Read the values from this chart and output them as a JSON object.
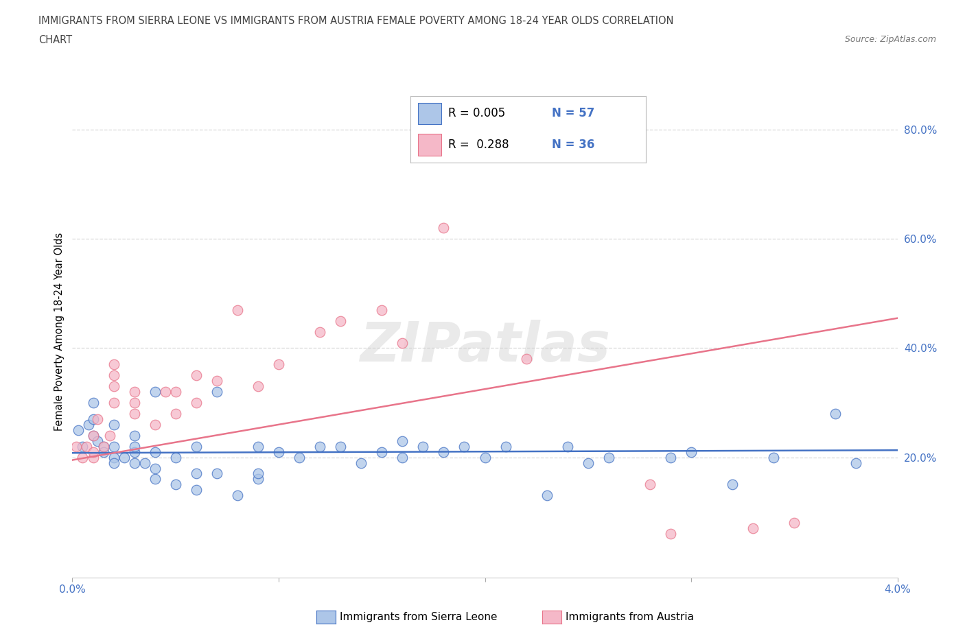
{
  "title_line1": "IMMIGRANTS FROM SIERRA LEONE VS IMMIGRANTS FROM AUSTRIA FEMALE POVERTY AMONG 18-24 YEAR OLDS CORRELATION",
  "title_line2": "CHART",
  "source": "Source: ZipAtlas.com",
  "ylabel": "Female Poverty Among 18-24 Year Olds",
  "xlim": [
    0.0,
    0.04
  ],
  "ylim": [
    -0.02,
    0.88
  ],
  "right_yticks": [
    0.2,
    0.4,
    0.6,
    0.8
  ],
  "right_ytick_labels": [
    "20.0%",
    "40.0%",
    "60.0%",
    "80.0%"
  ],
  "xticks": [
    0.0,
    0.01,
    0.02,
    0.03,
    0.04
  ],
  "xtick_labels": [
    "0.0%",
    "",
    "",
    "",
    "4.0%"
  ],
  "watermark": "ZIPatlas",
  "color_sierra": "#adc6e8",
  "color_austria": "#f5b8c8",
  "color_sierra_line": "#4472c4",
  "color_austria_line": "#e8748a",
  "color_blue_text": "#4472c4",
  "gridline_color": "#d8d8d8",
  "background_color": "#ffffff",
  "sierra_leone_x": [
    0.0003,
    0.0005,
    0.0008,
    0.001,
    0.001,
    0.001,
    0.0012,
    0.0015,
    0.0015,
    0.002,
    0.002,
    0.002,
    0.002,
    0.0025,
    0.003,
    0.003,
    0.003,
    0.003,
    0.0035,
    0.004,
    0.004,
    0.004,
    0.004,
    0.005,
    0.005,
    0.006,
    0.006,
    0.006,
    0.007,
    0.007,
    0.008,
    0.009,
    0.009,
    0.009,
    0.01,
    0.011,
    0.012,
    0.013,
    0.014,
    0.015,
    0.016,
    0.016,
    0.017,
    0.018,
    0.019,
    0.02,
    0.021,
    0.023,
    0.024,
    0.025,
    0.026,
    0.029,
    0.03,
    0.032,
    0.034,
    0.037,
    0.038
  ],
  "sierra_leone_y": [
    0.25,
    0.22,
    0.26,
    0.27,
    0.24,
    0.3,
    0.23,
    0.22,
    0.21,
    0.2,
    0.22,
    0.19,
    0.26,
    0.2,
    0.19,
    0.21,
    0.22,
    0.24,
    0.19,
    0.16,
    0.18,
    0.21,
    0.32,
    0.15,
    0.2,
    0.14,
    0.17,
    0.22,
    0.17,
    0.32,
    0.13,
    0.16,
    0.17,
    0.22,
    0.21,
    0.2,
    0.22,
    0.22,
    0.19,
    0.21,
    0.23,
    0.2,
    0.22,
    0.21,
    0.22,
    0.2,
    0.22,
    0.13,
    0.22,
    0.19,
    0.2,
    0.2,
    0.21,
    0.15,
    0.2,
    0.28,
    0.19
  ],
  "austria_x": [
    0.0002,
    0.0005,
    0.0007,
    0.001,
    0.001,
    0.001,
    0.0012,
    0.0015,
    0.0018,
    0.002,
    0.002,
    0.002,
    0.002,
    0.003,
    0.003,
    0.003,
    0.004,
    0.0045,
    0.005,
    0.005,
    0.006,
    0.006,
    0.007,
    0.008,
    0.009,
    0.01,
    0.012,
    0.013,
    0.015,
    0.016,
    0.018,
    0.022,
    0.028,
    0.029,
    0.033,
    0.035
  ],
  "austria_y": [
    0.22,
    0.2,
    0.22,
    0.2,
    0.21,
    0.24,
    0.27,
    0.22,
    0.24,
    0.3,
    0.35,
    0.33,
    0.37,
    0.28,
    0.3,
    0.32,
    0.26,
    0.32,
    0.28,
    0.32,
    0.35,
    0.3,
    0.34,
    0.47,
    0.33,
    0.37,
    0.43,
    0.45,
    0.47,
    0.41,
    0.62,
    0.38,
    0.15,
    0.06,
    0.07,
    0.08
  ],
  "sierra_trendline_x": [
    0.0,
    0.04
  ],
  "sierra_trendline_y": [
    0.208,
    0.213
  ],
  "austria_trendline_x": [
    0.0,
    0.04
  ],
  "austria_trendline_y": [
    0.195,
    0.455
  ],
  "legend_items": [
    {
      "label": "R = 0.005   N = 57",
      "r_text": "R = 0.005",
      "n_text": "N = 57",
      "color": "#adc6e8",
      "edge": "#4472c4"
    },
    {
      "label": "R =  0.288   N = 36",
      "r_text": "R =  0.288",
      "n_text": "N = 36",
      "color": "#f5b8c8",
      "edge": "#e8748a"
    }
  ]
}
